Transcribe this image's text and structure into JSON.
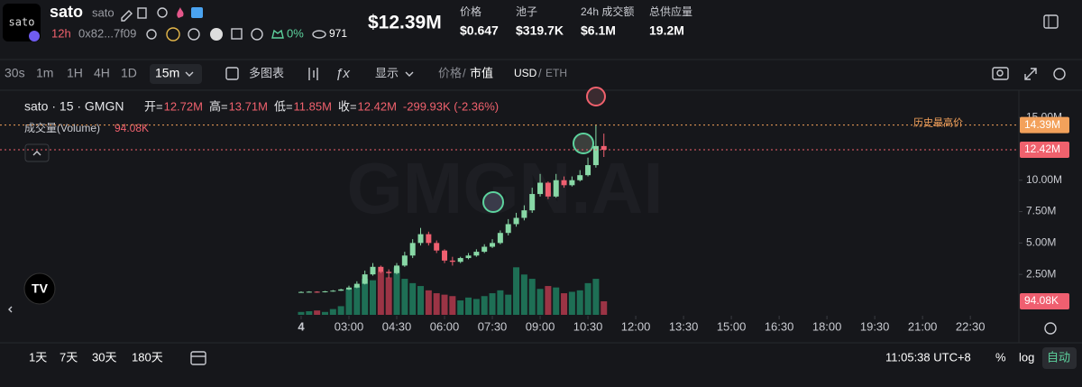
{
  "header": {
    "logo_text": "sato",
    "name": "sato",
    "symbol": "sato",
    "age": "12h",
    "address": "0x82...7f09",
    "change": "0%",
    "holders": "971",
    "market_cap": "$12.39M",
    "stats": [
      {
        "label": "价格",
        "value": "$0.647"
      },
      {
        "label": "池子",
        "value": "$319.7K"
      },
      {
        "label": "24h 成交额",
        "value": "$6.1M"
      },
      {
        "label": "总供应量",
        "value": "19.2M"
      }
    ]
  },
  "toolbar": {
    "intervals": [
      "30s",
      "1m",
      "1H",
      "4H",
      "1D"
    ],
    "selected_interval": "15m",
    "multi_chart": "多图表",
    "display": "显示",
    "price": "价格",
    "separator": "/",
    "market_cap": "市值",
    "currency": "USD",
    "alt_currency": "ETH"
  },
  "chart_data": {
    "type": "candlestick",
    "title": "sato · 15 · GMGN",
    "watermark": "GMGN.AI",
    "legend": {
      "ohlc": [
        {
          "label": "开=",
          "value": "12.72M"
        },
        {
          "label": "高=",
          "value": "13.71M"
        },
        {
          "label": "低=",
          "value": "11.85M"
        },
        {
          "label": "收=",
          "value": "12.42M"
        }
      ],
      "change": "-299.93K (-2.36%)",
      "volume_label": "成交量(Volume)",
      "volume_value": "94.08K"
    },
    "up_color": "#88d8a6",
    "down_color": "#ef5f70",
    "x": [
      90,
      105,
      120,
      135,
      150,
      165,
      180,
      195,
      210,
      225,
      240,
      255,
      270,
      285,
      300,
      315,
      330,
      345,
      360,
      375,
      390,
      405,
      420,
      435,
      450,
      465,
      480,
      495,
      510,
      525,
      540,
      555,
      570,
      585,
      600,
      615,
      630,
      645,
      660
    ],
    "open": [
      1080000,
      1100000,
      1120000,
      1080000,
      1150000,
      1200000,
      1300000,
      1450000,
      1750000,
      2500000,
      3100000,
      2700000,
      2600000,
      3200000,
      4000000,
      5000000,
      5700000,
      5000000,
      4400000,
      3600000,
      3500000,
      3800000,
      4000000,
      4300000,
      4700000,
      5000000,
      5800000,
      6500000,
      7000000,
      7600000,
      8900000,
      9800000,
      8700000,
      10000000,
      9600000,
      10000000,
      10400000,
      11200000,
      12720000
    ],
    "high": [
      1150000,
      1160000,
      1150000,
      1180000,
      1250000,
      1350000,
      1600000,
      1950000,
      2800000,
      3400000,
      3200000,
      2900000,
      3400000,
      4300000,
      5300000,
      6200000,
      5900000,
      5200000,
      4500000,
      3900000,
      3900000,
      4200000,
      4500000,
      4900000,
      5300000,
      6000000,
      6900000,
      7400000,
      8000000,
      9400000,
      10500000,
      9900000,
      10500000,
      10300000,
      10300000,
      10800000,
      11800000,
      14390000,
      13710000
    ],
    "low": [
      1050000,
      1060000,
      1040000,
      1060000,
      1120000,
      1180000,
      1250000,
      1400000,
      1700000,
      2400000,
      2600000,
      2200000,
      2500000,
      3100000,
      3800000,
      4800000,
      4800000,
      4200000,
      3400000,
      3200000,
      3400000,
      3700000,
      3900000,
      4200000,
      4600000,
      4900000,
      5600000,
      6300000,
      6800000,
      7400000,
      8700000,
      8500000,
      8600000,
      9400000,
      9500000,
      9900000,
      10300000,
      11000000,
      11850000
    ],
    "close": [
      1100000,
      1120000,
      1080000,
      1150000,
      1200000,
      1300000,
      1450000,
      1750000,
      2500000,
      3100000,
      2700000,
      2600000,
      3200000,
      4000000,
      5000000,
      5700000,
      5000000,
      4400000,
      3600000,
      3500000,
      3800000,
      4000000,
      4300000,
      4700000,
      5000000,
      5800000,
      6500000,
      7000000,
      7600000,
      8900000,
      9800000,
      8700000,
      10000000,
      9600000,
      10000000,
      10400000,
      11200000,
      12720000,
      12420000
    ],
    "volume": {
      "up_color": "#1e6f55",
      "down_color": "#9b3445",
      "ylim": [
        0,
        620000
      ],
      "current_label": "94.08K",
      "values": [
        20000,
        25000,
        30000,
        20000,
        40000,
        60000,
        180000,
        200000,
        250000,
        240000,
        300000,
        260000,
        330000,
        250000,
        220000,
        200000,
        170000,
        150000,
        140000,
        130000,
        100000,
        120000,
        110000,
        130000,
        150000,
        170000,
        140000,
        330000,
        280000,
        250000,
        180000,
        200000,
        190000,
        150000,
        160000,
        170000,
        220000,
        250000,
        94080
      ]
    },
    "xlim": [
      -477,
      1438
    ],
    "xticks": [
      {
        "value": 90,
        "label": "4"
      },
      {
        "value": 180,
        "label": "03:00"
      },
      {
        "value": 270,
        "label": "04:30"
      },
      {
        "value": 360,
        "label": "06:00"
      },
      {
        "value": 450,
        "label": "07:30"
      },
      {
        "value": 540,
        "label": "09:00"
      },
      {
        "value": 630,
        "label": "10:30"
      },
      {
        "value": 720,
        "label": "12:00"
      },
      {
        "value": 810,
        "label": "13:30"
      },
      {
        "value": 900,
        "label": "15:00"
      },
      {
        "value": 990,
        "label": "16:30"
      },
      {
        "value": 1080,
        "label": "18:00"
      },
      {
        "value": 1170,
        "label": "19:30"
      },
      {
        "value": 1260,
        "label": "21:00"
      },
      {
        "value": 1350,
        "label": "22:30"
      }
    ],
    "ylim": [
      -650000,
      16950000
    ],
    "yticks": [
      {
        "value": 2500000,
        "label": "2.50M"
      },
      {
        "value": 5000000,
        "label": "5.00M"
      },
      {
        "value": 7500000,
        "label": "7.50M"
      },
      {
        "value": 10000000,
        "label": "10.00M"
      },
      {
        "value": 15000000,
        "label": "15.00M"
      }
    ],
    "price_lines": [
      {
        "value": 14390000,
        "label": "14.39M",
        "note": "历史最高价",
        "color": "#f3a15b"
      },
      {
        "value": 12420000,
        "label": "12.42M",
        "color": "#f0616d"
      }
    ]
  },
  "footer": {
    "ranges": [
      "1天",
      "7天",
      "30天",
      "180天"
    ],
    "clock": "11:05:38 UTC+8",
    "percent": "%",
    "log": "log",
    "auto": "自动"
  }
}
